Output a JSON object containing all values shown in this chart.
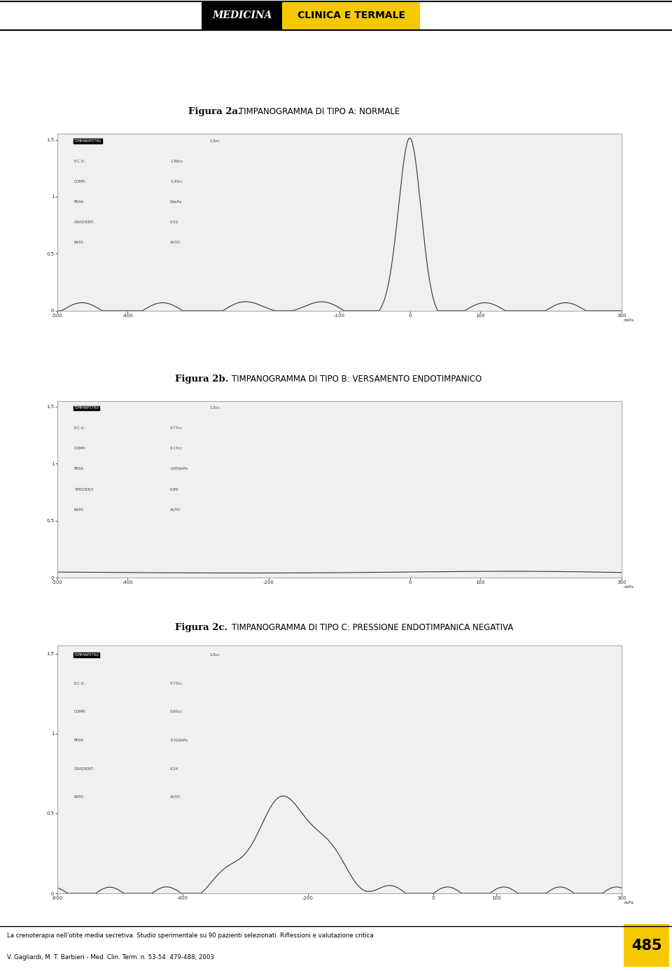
{
  "bg_color": "#ffffff",
  "header_black": "MEDICINA",
  "header_yellow": "CLINICA E TERMALE",
  "header_yellow_color": "#f5c800",
  "fig2a_label": "Figura 2a.",
  "fig2a_title": "TIMPANOGRAMMA DI TIPO A: NORMALE",
  "fig2b_label": "Figura 2b.",
  "fig2b_title": "TIMPANOGRAMMA DI TIPO B: VERSAMENTO ENDOTIMPANICO",
  "fig2c_label": "Figura 2c.",
  "fig2c_title": "TIMPANOGRAMMA DI TIPO C: PRESSIONE ENDOTIMPANICA NEGATIVA",
  "footer_line1": "La crenoterapia nell'otite media secretiva. Studio sperimentale su 90 pazienti selezionati. Riflessioni e valutazione critica",
  "footer_line2": "V. Gagliardi, M. T. Barbieri - Med. Clin. Term. n. 53-54: 479-488, 2003",
  "footer_page": "485",
  "panel_bg": "#f0f0f0",
  "panel_border": "#aaaaaa",
  "curve_color": "#333333",
  "dapa_label": "daPa",
  "info_a": [
    [
      "TIMPANOFETRO",
      "1.5cc"
    ],
    [
      "E.C.V.:",
      "1.86cc"
    ],
    [
      "COMP.:",
      "1.45cc"
    ],
    [
      "PEAK:",
      "0daPa"
    ],
    [
      "GRADIENT:",
      "0.52"
    ],
    [
      "RATE:",
      "AUTO"
    ]
  ],
  "info_b": [
    [
      "TIMPANFETRO",
      "1.5cc"
    ],
    [
      "E.C.V.:",
      "0.77cc"
    ],
    [
      "COMP.:",
      "0.17cc"
    ],
    [
      "PEAK:",
      "-295daPa"
    ],
    [
      "TPRDIENT:",
      "0.89"
    ],
    [
      "RATE:",
      "AUTO"
    ]
  ],
  "info_c": [
    [
      "TIMPANFETRO",
      "1.5cc"
    ],
    [
      "E.C.V.:",
      "0.73cc"
    ],
    [
      "COMP.:",
      "0.60cc"
    ],
    [
      "PEAK:",
      "-232daPa"
    ],
    [
      "GRADIENT:",
      "0.24"
    ],
    [
      "RATE:",
      "AUTO"
    ]
  ]
}
